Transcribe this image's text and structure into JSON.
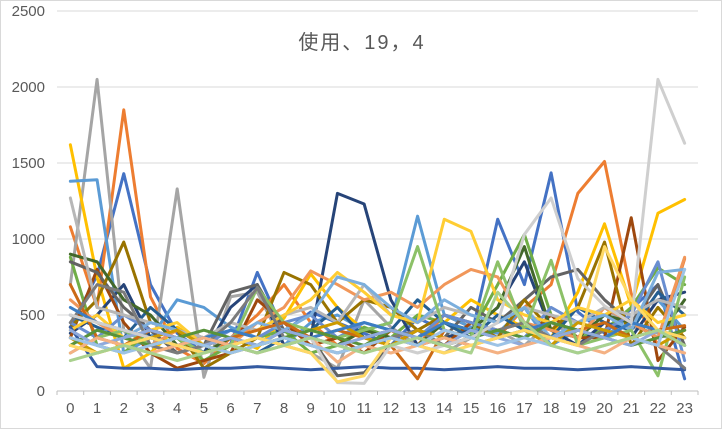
{
  "colors": {
    "background": "#FFFFFF",
    "border": "#D9D9D9",
    "gridline": "#D9D9D9",
    "axis_line": "#BFBFBF",
    "axis_text": "#595959",
    "title_text": "#595959"
  },
  "chart_data": {
    "type": "line",
    "title": "使用、19，4",
    "xlabel": "",
    "ylabel": "",
    "x_labels": [
      "0",
      "1",
      "2",
      "3",
      "4",
      "5",
      "6",
      "7",
      "8",
      "9",
      "10",
      "11",
      "12",
      "13",
      "14",
      "15",
      "16",
      "17",
      "18",
      "19",
      "20",
      "21",
      "22",
      "23"
    ],
    "y_ticks": [
      0,
      500,
      1000,
      1500,
      2000,
      2500
    ],
    "ylim": [
      0,
      2500
    ],
    "grid": "horizontal",
    "legend": "none",
    "series": [
      {
        "color": "#4472C4",
        "values": [
          420,
          760,
          1430,
          700,
          380,
          250,
          310,
          780,
          390,
          520,
          450,
          380,
          300,
          480,
          400,
          350,
          1130,
          700,
          1435,
          520,
          380,
          540,
          700,
          80
        ]
      },
      {
        "color": "#ED7D31",
        "values": [
          1080,
          550,
          1850,
          620,
          280,
          180,
          350,
          500,
          700,
          450,
          300,
          350,
          400,
          300,
          500,
          420,
          350,
          550,
          700,
          1300,
          1510,
          640,
          300,
          870
        ]
      },
      {
        "color": "#A5A5A5",
        "values": [
          700,
          2050,
          400,
          150,
          1330,
          90,
          620,
          650,
          300,
          250,
          150,
          600,
          420,
          300,
          250,
          350,
          400,
          300,
          450,
          350,
          550,
          420,
          380,
          300
        ]
      },
      {
        "color": "#FFC000",
        "values": [
          1620,
          750,
          150,
          250,
          420,
          300,
          350,
          280,
          480,
          770,
          550,
          400,
          350,
          300,
          450,
          600,
          500,
          420,
          350,
          650,
          1100,
          560,
          1170,
          1260
        ]
      },
      {
        "color": "#5B9BD5",
        "values": [
          1380,
          1390,
          250,
          350,
          600,
          550,
          420,
          350,
          300,
          450,
          500,
          400,
          450,
          1150,
          500,
          420,
          380,
          550,
          300,
          400,
          350,
          500,
          600,
          400
        ]
      },
      {
        "color": "#70AD47",
        "values": [
          880,
          300,
          250,
          400,
          350,
          200,
          300,
          350,
          400,
          250,
          300,
          420,
          350,
          500,
          450,
          380,
          700,
          1030,
          500,
          350,
          400,
          550,
          810,
          700
        ]
      },
      {
        "color": "#264478",
        "values": [
          380,
          500,
          700,
          350,
          300,
          250,
          550,
          700,
          300,
          350,
          1300,
          1230,
          600,
          300,
          350,
          400,
          550,
          850,
          400,
          300,
          450,
          350,
          600,
          650
        ]
      },
      {
        "color": "#9E480E",
        "values": [
          350,
          800,
          450,
          250,
          150,
          200,
          250,
          600,
          450,
          300,
          350,
          250,
          400,
          350,
          300,
          450,
          400,
          350,
          500,
          350,
          350,
          1140,
          200,
          420
        ]
      },
      {
        "color": "#636363",
        "values": [
          850,
          780,
          550,
          400,
          250,
          300,
          650,
          700,
          400,
          350,
          100,
          120,
          300,
          400,
          350,
          550,
          450,
          600,
          750,
          800,
          600,
          450,
          700,
          300
        ]
      },
      {
        "color": "#997300",
        "values": [
          420,
          600,
          980,
          450,
          400,
          150,
          250,
          350,
          780,
          700,
          450,
          600,
          550,
          400,
          500,
          450,
          350,
          600,
          400,
          550,
          980,
          300,
          550,
          350
        ]
      },
      {
        "color": "#255E91",
        "values": [
          500,
          420,
          350,
          550,
          400,
          350,
          300,
          250,
          350,
          400,
          550,
          350,
          400,
          600,
          450,
          350,
          500,
          400,
          350,
          550,
          450,
          400,
          650,
          500
        ]
      },
      {
        "color": "#43682B",
        "values": [
          900,
          850,
          600,
          500,
          300,
          250,
          350,
          300,
          400,
          350,
          300,
          400,
          350,
          300,
          450,
          400,
          550,
          950,
          400,
          350,
          500,
          450,
          350,
          600
        ]
      },
      {
        "color": "#698ED0",
        "values": [
          450,
          350,
          500,
          400,
          350,
          300,
          400,
          350,
          450,
          500,
          350,
          450,
          400,
          350,
          500,
          450,
          400,
          350,
          550,
          450,
          400,
          500,
          850,
          200
        ]
      },
      {
        "color": "#F1975A",
        "values": [
          600,
          450,
          350,
          300,
          400,
          350,
          300,
          450,
          550,
          790,
          700,
          600,
          650,
          550,
          700,
          800,
          750,
          450,
          400,
          350,
          550,
          450,
          350,
          880
        ]
      },
      {
        "color": "#B7B7B7",
        "values": [
          1270,
          550,
          500,
          450,
          400,
          350,
          450,
          400,
          500,
          550,
          450,
          700,
          500,
          450,
          550,
          500,
          450,
          550,
          500,
          450,
          550,
          500,
          600,
          550
        ]
      },
      {
        "color": "#FFCD33",
        "values": [
          400,
          500,
          350,
          400,
          450,
          300,
          350,
          400,
          500,
          600,
          780,
          650,
          500,
          450,
          1130,
          1050,
          600,
          500,
          450,
          550,
          500,
          600,
          450,
          500
        ]
      },
      {
        "color": "#7CAFDD",
        "values": [
          300,
          400,
          350,
          450,
          400,
          300,
          350,
          450,
          400,
          500,
          750,
          700,
          550,
          450,
          600,
          500,
          450,
          550,
          350,
          450,
          500,
          400,
          780,
          800
        ]
      },
      {
        "color": "#8CC168",
        "values": [
          250,
          350,
          400,
          300,
          350,
          250,
          300,
          680,
          450,
          400,
          350,
          400,
          450,
          950,
          400,
          350,
          850,
          400,
          860,
          300,
          350,
          400,
          100,
          750
        ]
      },
      {
        "color": "#335AA1",
        "values": [
          420,
          160,
          150,
          150,
          140,
          150,
          150,
          160,
          150,
          140,
          150,
          160,
          150,
          150,
          140,
          150,
          160,
          150,
          150,
          140,
          150,
          160,
          150,
          140
        ]
      },
      {
        "color": "#CB6A15",
        "values": [
          700,
          350,
          300,
          400,
          350,
          300,
          350,
          400,
          450,
          350,
          400,
          350,
          300,
          80,
          400,
          350,
          400,
          450,
          350,
          400,
          450,
          350,
          400,
          430
        ]
      },
      {
        "color": "#7B7B7B",
        "values": [
          450,
          700,
          650,
          300,
          250,
          300,
          450,
          680,
          350,
          300,
          250,
          300,
          350,
          400,
          300,
          350,
          400,
          450,
          350,
          300,
          400,
          350,
          300,
          150
        ]
      },
      {
        "color": "#CC9A00",
        "values": [
          350,
          250,
          300,
          350,
          400,
          300,
          250,
          300,
          350,
          400,
          450,
          350,
          300,
          400,
          350,
          300,
          350,
          400,
          300,
          450,
          400,
          350,
          300,
          400
        ]
      },
      {
        "color": "#3C7DC3",
        "values": [
          550,
          450,
          400,
          350,
          300,
          350,
          400,
          350,
          300,
          350,
          400,
          450,
          400,
          350,
          450,
          400,
          350,
          400,
          450,
          400,
          350,
          450,
          400,
          350
        ]
      },
      {
        "color": "#58923A",
        "values": [
          300,
          400,
          350,
          300,
          350,
          400,
          350,
          300,
          350,
          400,
          350,
          300,
          400,
          350,
          300,
          350,
          400,
          350,
          450,
          400,
          350,
          300,
          350,
          400
        ]
      },
      {
        "color": "#8FAADC",
        "values": [
          400,
          300,
          350,
          400,
          350,
          300,
          350,
          300,
          400,
          350,
          300,
          350,
          400,
          350,
          300,
          400,
          350,
          300,
          350,
          400,
          350,
          300,
          400,
          350
        ]
      },
      {
        "color": "#F4B183",
        "values": [
          250,
          350,
          300,
          250,
          300,
          350,
          300,
          250,
          300,
          350,
          190,
          300,
          250,
          300,
          350,
          300,
          250,
          300,
          350,
          300,
          250,
          350,
          300,
          250
        ]
      },
      {
        "color": "#CFCFCF",
        "values": [
          500,
          450,
          400,
          350,
          300,
          250,
          300,
          350,
          300,
          350,
          55,
          50,
          300,
          250,
          300,
          350,
          450,
          1030,
          1270,
          740,
          560,
          450,
          2050,
          1630
        ]
      },
      {
        "color": "#FFD966",
        "values": [
          300,
          250,
          300,
          350,
          300,
          250,
          300,
          350,
          300,
          250,
          60,
          100,
          350,
          300,
          250,
          300,
          350,
          400,
          350,
          300,
          950,
          600,
          400,
          350
        ]
      },
      {
        "color": "#9DC3E6",
        "values": [
          350,
          300,
          250,
          300,
          350,
          300,
          250,
          300,
          350,
          300,
          250,
          300,
          350,
          300,
          400,
          350,
          300,
          350,
          300,
          250,
          300,
          350,
          300,
          800
        ]
      },
      {
        "color": "#A9D18E",
        "values": [
          200,
          250,
          300,
          250,
          200,
          250,
          300,
          250,
          300,
          350,
          300,
          250,
          300,
          350,
          300,
          250,
          650,
          450,
          300,
          250,
          300,
          350,
          400,
          300
        ]
      }
    ]
  }
}
